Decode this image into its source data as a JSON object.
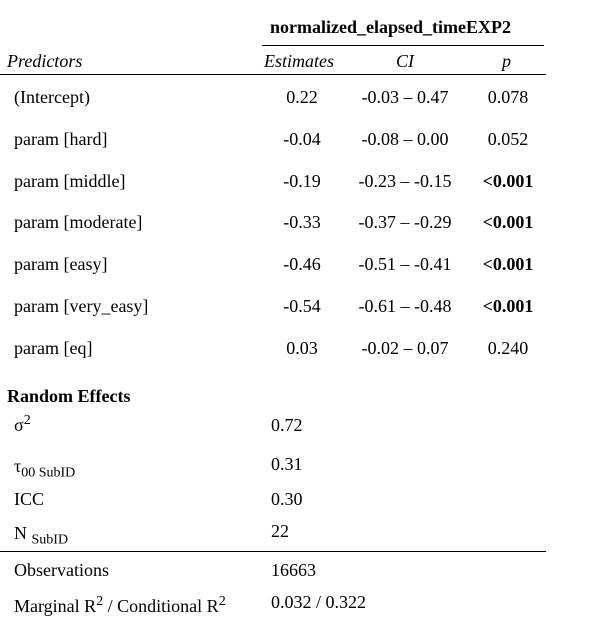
{
  "title": "normalized_elapsed_timeEXP2",
  "headers": {
    "predictors": "Predictors",
    "estimates": "Estimates",
    "ci": "CI",
    "p": "p"
  },
  "rows": [
    {
      "label": "(Intercept)",
      "estimate": "0.22",
      "ci": "-0.03 – 0.47",
      "p": "0.078",
      "p_bold": false
    },
    {
      "label": "param [hard]",
      "estimate": "-0.04",
      "ci": "-0.08 – 0.00",
      "p": "0.052",
      "p_bold": false
    },
    {
      "label": "param [middle]",
      "estimate": "-0.19",
      "ci": "-0.23 – -0.15",
      "p": "<0.001",
      "p_bold": true
    },
    {
      "label": "param [moderate]",
      "estimate": "-0.33",
      "ci": "-0.37 – -0.29",
      "p": "<0.001",
      "p_bold": true
    },
    {
      "label": "param [easy]",
      "estimate": "-0.46",
      "ci": "-0.51 – -0.41",
      "p": "<0.001",
      "p_bold": true
    },
    {
      "label": "param [very_easy]",
      "estimate": "-0.54",
      "ci": "-0.61 – -0.48",
      "p": "<0.001",
      "p_bold": true
    },
    {
      "label": "param [eq]",
      "estimate": "0.03",
      "ci": "-0.02 – 0.07",
      "p": "0.240",
      "p_bold": false
    }
  ],
  "random_effects": {
    "heading": "Random Effects",
    "sigma2": {
      "symbol": "σ",
      "sup": "2",
      "value": "0.72"
    },
    "tau00": {
      "symbol": "τ",
      "sub": "00 SubID",
      "value": "0.31"
    },
    "icc": {
      "label": "ICC",
      "value": "0.30"
    },
    "n": {
      "symbol": "N",
      "sub": "SubID",
      "value": "22"
    }
  },
  "observations": {
    "label": "Observations",
    "value": "16663"
  },
  "r2": {
    "label_a": "Marginal R",
    "sup_a": "2",
    "label_b": " / Conditional R",
    "sup_b": "2",
    "value": "0.032 / 0.322"
  }
}
